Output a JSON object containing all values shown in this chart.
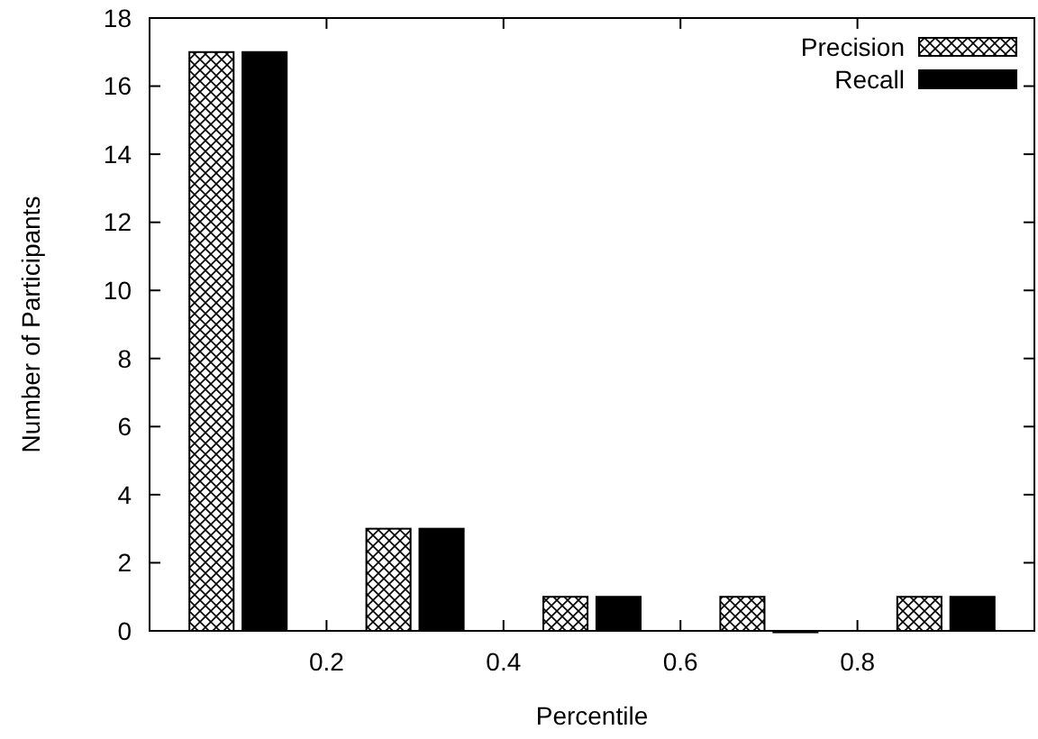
{
  "chart_data": {
    "type": "bar",
    "xlabel": "Percentile",
    "ylabel": "Number of Participants",
    "x": [
      0.1,
      0.3,
      0.5,
      0.7,
      0.9
    ],
    "xlim": [
      0,
      1
    ],
    "xticks": [
      0.2,
      0.4,
      0.6,
      0.8
    ],
    "ylim": [
      0,
      18
    ],
    "yticks": [
      0,
      2,
      4,
      6,
      8,
      10,
      12,
      14,
      16,
      18
    ],
    "grid": false,
    "legend": "top right",
    "series": [
      {
        "name": "Precision",
        "color": "#ffffff",
        "values": [
          17,
          3,
          1,
          1,
          1
        ]
      },
      {
        "name": "Recall",
        "color": "#000000",
        "values": [
          17,
          3,
          1,
          0,
          1
        ]
      }
    ]
  }
}
